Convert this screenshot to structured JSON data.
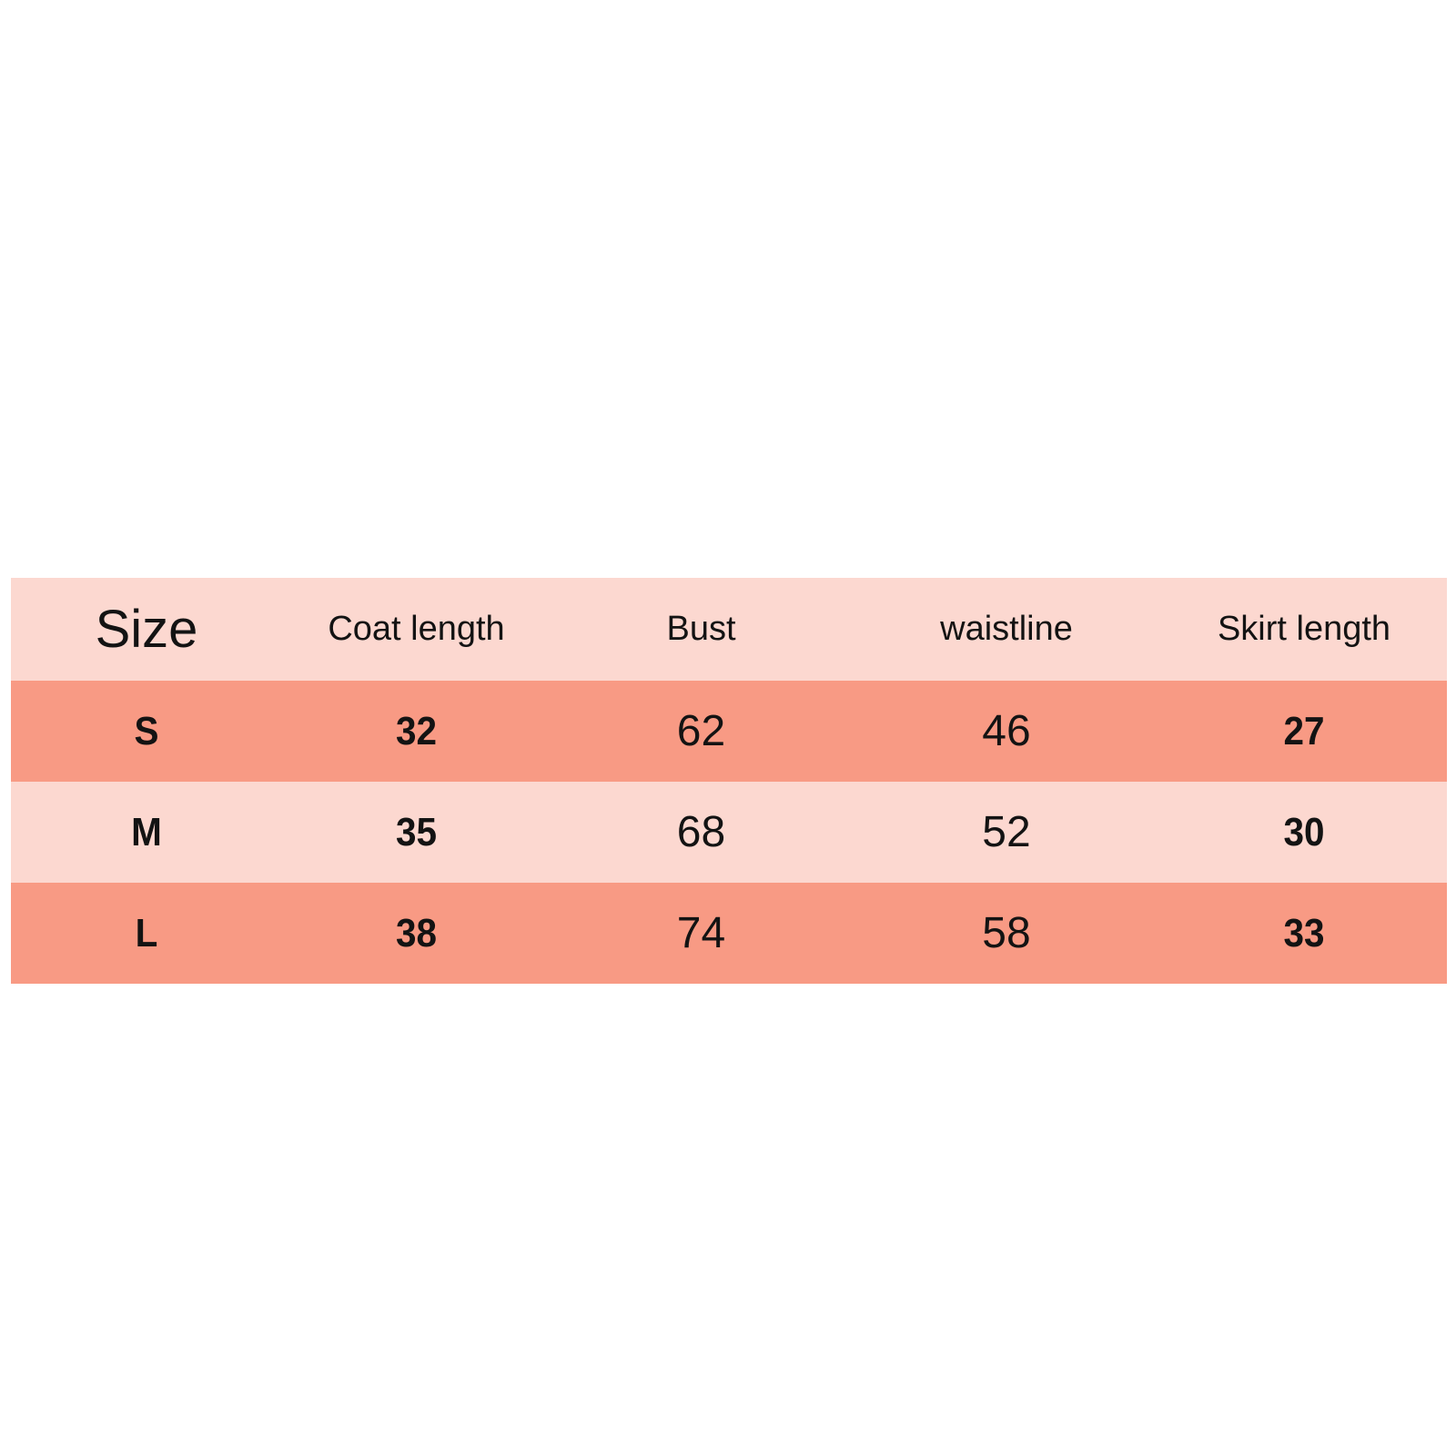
{
  "page": {
    "background_color": "#ffffff"
  },
  "table_colors": {
    "light_row_bg": "#fcd8d0",
    "dark_row_bg": "#f89a84",
    "text_color": "#131313"
  },
  "chart_data": {
    "type": "table",
    "columns": [
      "Size",
      "Coat length",
      "Bust",
      "waistline",
      "Skirt length"
    ],
    "rows": [
      [
        "S",
        "32",
        "62",
        "46",
        "27"
      ],
      [
        "M",
        "35",
        "68",
        "52",
        "30"
      ],
      [
        "L",
        "38",
        "74",
        "58",
        "33"
      ]
    ]
  }
}
